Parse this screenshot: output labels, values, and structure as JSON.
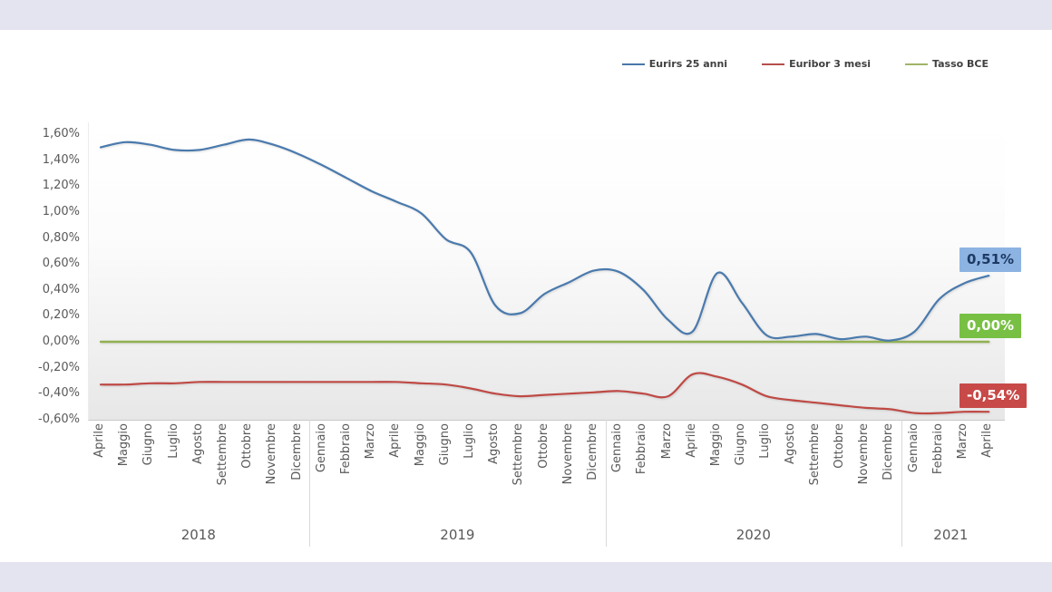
{
  "window": {
    "frame_color": "#e4e4f0",
    "canvas_color": "#ffffff"
  },
  "legend": {
    "items": [
      {
        "label": "Eurirs 25 anni",
        "color": "#4a77a8"
      },
      {
        "label": "Euribor 3 mesi",
        "color": "#b5504c"
      },
      {
        "label": "Tasso BCE",
        "color": "#a2b469"
      }
    ]
  },
  "chart_data": {
    "type": "line",
    "title": "",
    "xlabel": "",
    "ylabel": "",
    "ylim": [
      -0.6,
      1.6
    ],
    "grid": false,
    "legend_position": "top-right",
    "y_ticks": [
      {
        "label": "1,60%",
        "value": 1.6
      },
      {
        "label": "1,40%",
        "value": 1.4
      },
      {
        "label": "1,20%",
        "value": 1.2
      },
      {
        "label": "1,00%",
        "value": 1.0
      },
      {
        "label": "0,80%",
        "value": 0.8
      },
      {
        "label": "0,60%",
        "value": 0.6
      },
      {
        "label": "0,40%",
        "value": 0.4
      },
      {
        "label": "0,20%",
        "value": 0.2
      },
      {
        "label": "0,00%",
        "value": 0.0
      },
      {
        "label": "-0,20%",
        "value": -0.2
      },
      {
        "label": "-0,40%",
        "value": -0.4
      },
      {
        "label": "-0,60%",
        "value": -0.6
      }
    ],
    "year_groups": [
      {
        "year": "2018",
        "months": [
          "Aprile",
          "Maggio",
          "Giugno",
          "Luglio",
          "Agosto",
          "Settembre",
          "Ottobre",
          "Novembre",
          "Dicembre"
        ]
      },
      {
        "year": "2019",
        "months": [
          "Gennaio",
          "Febbraio",
          "Marzo",
          "Aprile",
          "Maggio",
          "Giugno",
          "Luglio",
          "Agosto",
          "Settembre",
          "Ottobre",
          "Novembre",
          "Dicembre"
        ]
      },
      {
        "year": "2020",
        "months": [
          "Gennaio",
          "Febbraio",
          "Marzo",
          "Aprile",
          "Maggio",
          "Giugno",
          "Luglio",
          "Agosto",
          "Settembre",
          "Ottobre",
          "Novembre",
          "Dicembre"
        ]
      },
      {
        "year": "2021",
        "months": [
          "Gennaio",
          "Febbraio",
          "Marzo",
          "Aprile"
        ]
      }
    ],
    "series": [
      {
        "name": "Eurirs 25 anni",
        "color": "#4a7aad",
        "values": [
          1.5,
          1.54,
          1.52,
          1.48,
          1.48,
          1.52,
          1.56,
          1.52,
          1.45,
          1.36,
          1.26,
          1.16,
          1.08,
          0.99,
          0.79,
          0.69,
          0.28,
          0.22,
          0.37,
          0.46,
          0.55,
          0.54,
          0.4,
          0.17,
          0.08,
          0.53,
          0.3,
          0.05,
          0.04,
          0.06,
          0.02,
          0.04,
          0.01,
          0.08,
          0.33,
          0.45,
          0.51
        ]
      },
      {
        "name": "Euribor 3 mesi",
        "color": "#bf4a45",
        "values": [
          -0.33,
          -0.33,
          -0.32,
          -0.32,
          -0.31,
          -0.31,
          -0.31,
          -0.31,
          -0.31,
          -0.31,
          -0.31,
          -0.31,
          -0.31,
          -0.32,
          -0.33,
          -0.36,
          -0.4,
          -0.42,
          -0.41,
          -0.4,
          -0.39,
          -0.38,
          -0.4,
          -0.42,
          -0.25,
          -0.27,
          -0.33,
          -0.42,
          -0.45,
          -0.47,
          -0.49,
          -0.51,
          -0.52,
          -0.55,
          -0.55,
          -0.54,
          -0.54
        ]
      },
      {
        "name": "Tasso BCE",
        "color": "#93b152",
        "values": [
          0,
          0,
          0,
          0,
          0,
          0,
          0,
          0,
          0,
          0,
          0,
          0,
          0,
          0,
          0,
          0,
          0,
          0,
          0,
          0,
          0,
          0,
          0,
          0,
          0,
          0,
          0,
          0,
          0,
          0,
          0,
          0,
          0,
          0,
          0,
          0,
          0
        ]
      }
    ],
    "end_labels": [
      {
        "text": "0,51%",
        "series": "Eurirs 25 anni",
        "value": 0.51,
        "bg": "#8db3e2",
        "fg": "#1d3a63"
      },
      {
        "text": "0,00%",
        "series": "Tasso BCE",
        "value": 0.0,
        "bg": "#77c043",
        "fg": "#ffffff"
      },
      {
        "text": "-0,54%",
        "series": "Euribor 3 mesi",
        "value": -0.54,
        "bg": "#c74a48",
        "fg": "#ffffff"
      }
    ]
  }
}
